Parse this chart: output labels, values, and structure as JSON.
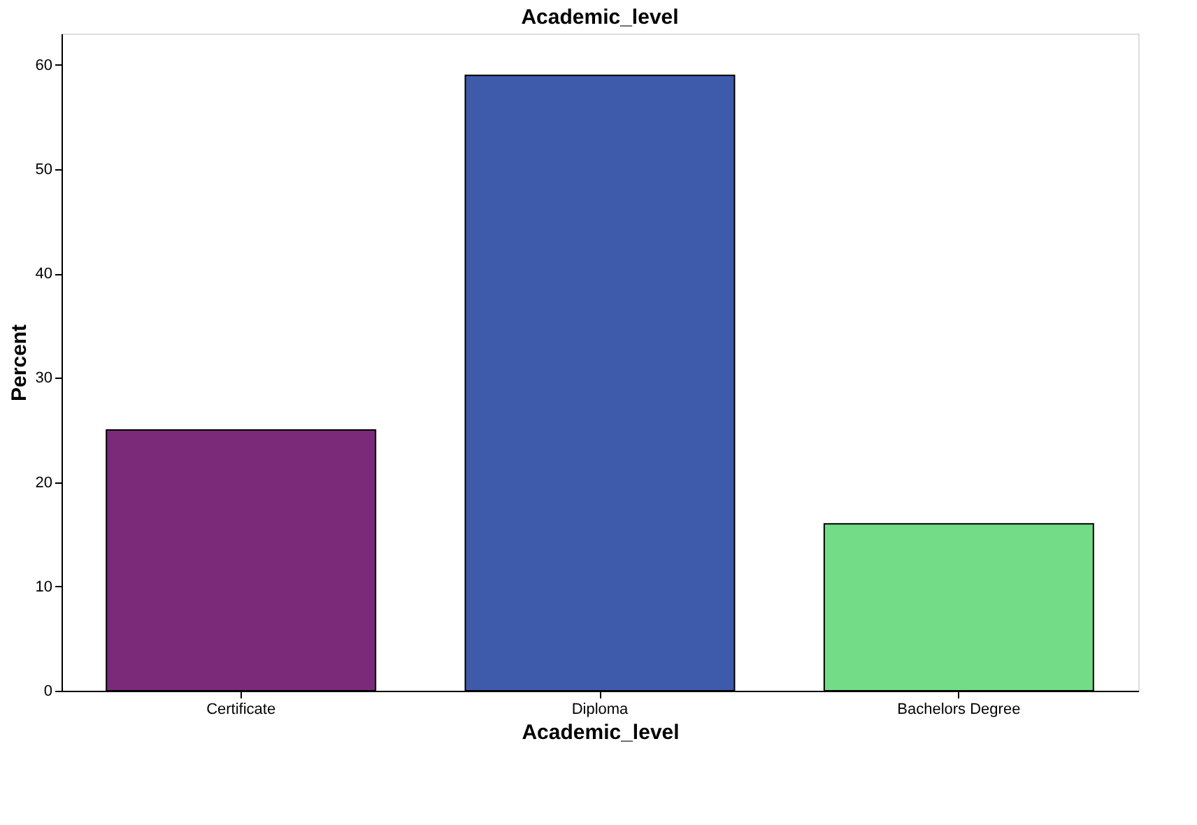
{
  "chart_data": {
    "type": "bar",
    "title": "Academic_level",
    "xlabel": "Academic_level",
    "ylabel": "Percent",
    "categories": [
      "Certificate",
      "Diploma",
      "Bachelors Degree"
    ],
    "values": [
      25,
      59,
      16
    ],
    "colors": [
      "#7b2a7a",
      "#3d5aab",
      "#72dc86"
    ],
    "ylim": [
      0,
      63
    ],
    "yticks": [
      0,
      10,
      20,
      30,
      40,
      50,
      60
    ],
    "grid": false,
    "legend": false
  }
}
